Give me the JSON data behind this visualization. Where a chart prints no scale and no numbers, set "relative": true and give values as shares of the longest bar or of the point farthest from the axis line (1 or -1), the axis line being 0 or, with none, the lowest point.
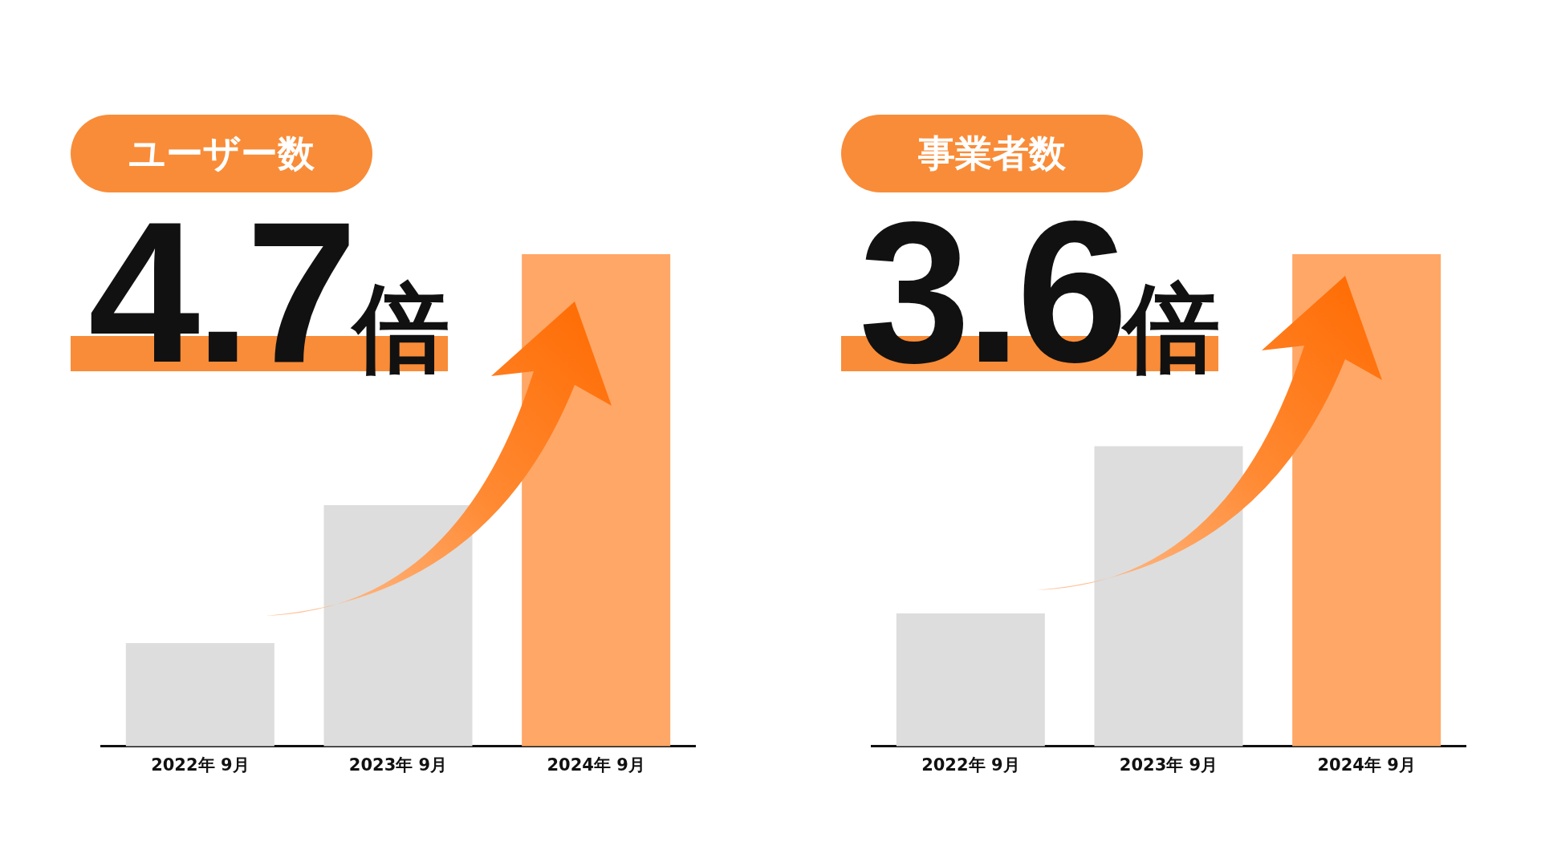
{
  "chart_data": [
    {
      "type": "bar",
      "title": "ユーザー数",
      "annotations": [
        "4.7倍"
      ],
      "categories": [
        "2022年 9月",
        "2023年 9月",
        "2024年 9月"
      ],
      "values": [
        0.21,
        0.49,
        1
      ],
      "colors": [
        "#dddddd",
        "#dddddd",
        "#ffa766"
      ],
      "relative": true,
      "grid": false,
      "legend": false
    },
    {
      "type": "bar",
      "title": "事業者数",
      "annotations": [
        "3.6倍"
      ],
      "categories": [
        "2022年 9月",
        "2023年 9月",
        "2024年 9月"
      ],
      "values": [
        0.27,
        0.61,
        1
      ],
      "colors": [
        "#dddddd",
        "#dddddd",
        "#ffa766"
      ],
      "relative": true,
      "grid": false,
      "legend": false
    }
  ]
}
